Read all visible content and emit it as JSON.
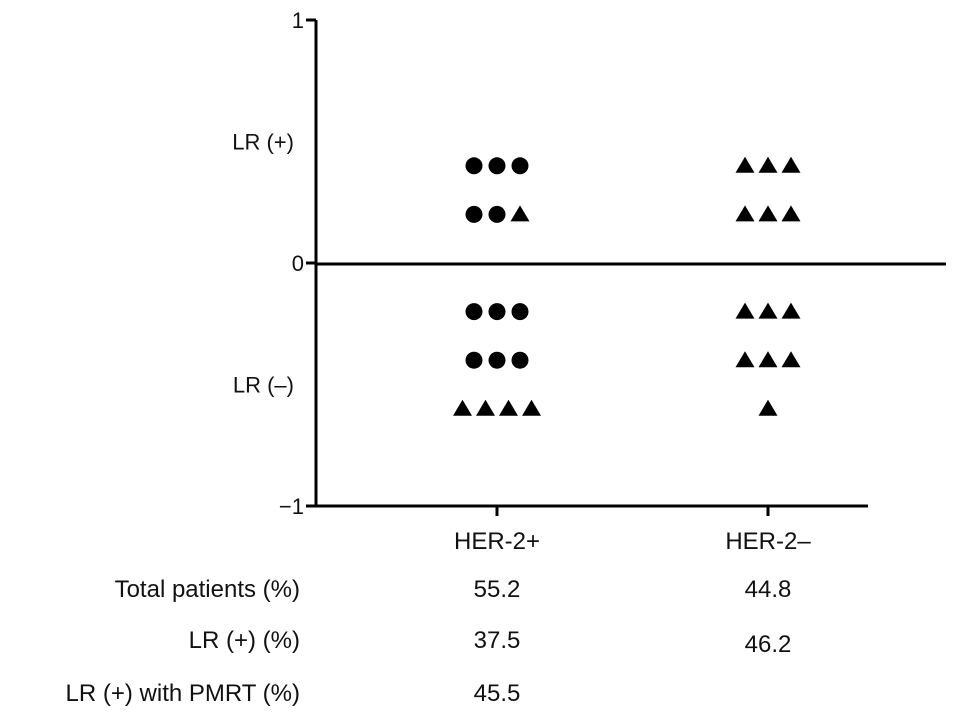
{
  "chart_data": {
    "type": "scatter",
    "y_ticks": [
      {
        "value": 1,
        "label": "1"
      },
      {
        "value": 0,
        "label": "0"
      },
      {
        "value": -1,
        "label": "−1"
      }
    ],
    "y_region_labels": [
      {
        "value": 0.5,
        "label": "LR (+)"
      },
      {
        "value": -0.5,
        "label": "LR (–)"
      }
    ],
    "ylim": [
      -1,
      1
    ],
    "categories": [
      "HER-2+",
      "HER-2–"
    ],
    "groups": [
      {
        "category": "HER-2+",
        "rows": [
          {
            "y": 0.4,
            "markers": [
              "circle",
              "circle",
              "circle"
            ]
          },
          {
            "y": 0.2,
            "markers": [
              "circle",
              "circle",
              "triangle"
            ]
          },
          {
            "y": -0.2,
            "markers": [
              "circle",
              "circle",
              "circle"
            ]
          },
          {
            "y": -0.4,
            "markers": [
              "circle",
              "circle",
              "circle"
            ]
          },
          {
            "y": -0.6,
            "markers": [
              "triangle",
              "triangle",
              "triangle",
              "triangle"
            ]
          }
        ]
      },
      {
        "category": "HER-2–",
        "rows": [
          {
            "y": 0.4,
            "markers": [
              "triangle",
              "triangle",
              "triangle"
            ]
          },
          {
            "y": 0.2,
            "markers": [
              "triangle",
              "triangle",
              "triangle"
            ]
          },
          {
            "y": -0.2,
            "markers": [
              "triangle",
              "triangle",
              "triangle"
            ]
          },
          {
            "y": -0.4,
            "markers": [
              "triangle",
              "triangle",
              "triangle"
            ]
          },
          {
            "y": -0.6,
            "markers": [
              "triangle"
            ]
          }
        ]
      }
    ],
    "table": {
      "rows": [
        {
          "label": "Total patients (%)",
          "values": [
            "55.2",
            "44.8"
          ]
        },
        {
          "label": "LR (+) (%)",
          "values": [
            "37.5",
            "46.2"
          ]
        },
        {
          "label": "LR (+) with PMRT (%)",
          "values": [
            "45.5",
            ""
          ]
        }
      ]
    },
    "colors": {
      "marker": "#000000",
      "axis": "#000000",
      "text": "#111111"
    }
  }
}
